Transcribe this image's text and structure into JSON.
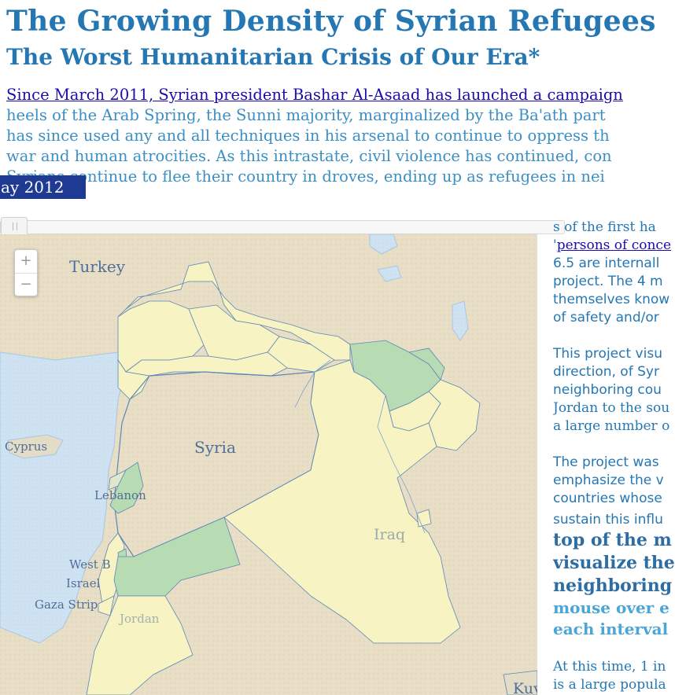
{
  "header": {
    "title": "The Growing Density of Syrian Refugees",
    "subtitle": "The Worst Humanitarian Crisis of Our Era*"
  },
  "intro": {
    "link_text": "Since March 2011, Syrian president Bashar Al-Asaad has launched a campaign",
    "line2": "heels of the Arab Spring, the Sunni majority, marginalized by the Ba'ath part",
    "line3": "has since used any and all techniques in his arsenal to continue to oppress th",
    "line4": "war and human atrocities. As this intrastate, civil violence has continued, con",
    "line5": "Syrians continue to flee their country in droves, ending up as refugees in nei"
  },
  "timeline": {
    "date_label": "ay 2012",
    "progress": 0
  },
  "map": {
    "zoom_in": "+",
    "zoom_out": "−",
    "labels": {
      "turkey": "Turkey",
      "syria": "Syria",
      "cyprus": "Cyprus",
      "lebanon": "Lebanon",
      "iraq": "Iraq",
      "west_bank": "West B",
      "israel": "Israel",
      "gaza": "Gaza Strip",
      "jordan": "Jordan",
      "kuwait": "Kuv"
    },
    "colors": {
      "low": "#f7f3c2",
      "mid": "#b7dcb4",
      "sea": "#cfe3f2",
      "border": "#5b86b8"
    }
  },
  "sidebar": {
    "p1_line1": "s of the first ha",
    "p1_link_prefix": "'",
    "p1_link": "persons of conce",
    "p1_line3": "6.5 are internall",
    "p1_line4": "project. The 4 m",
    "p1_line5": "themselves know",
    "p1_line6": "of safety and/or",
    "p2_line1": "This project visu",
    "p2_line2": "direction, of Syr",
    "p2_line3": "neighboring cou",
    "p2_line4": "Jordan to the sou",
    "p2_line5": "a large number o",
    "p3_line1": "The project was",
    "p3_line2": "emphasize the v",
    "p3_line3": "countries whose",
    "p3_line4": "sustain this influ",
    "big1": "top of the m",
    "big2": "visualize the",
    "big3": "neighboring",
    "light1": "mouse over e",
    "light2": "each interval",
    "p4_line1": "At this time, 1 in",
    "p4_line2": "is a large popula"
  }
}
